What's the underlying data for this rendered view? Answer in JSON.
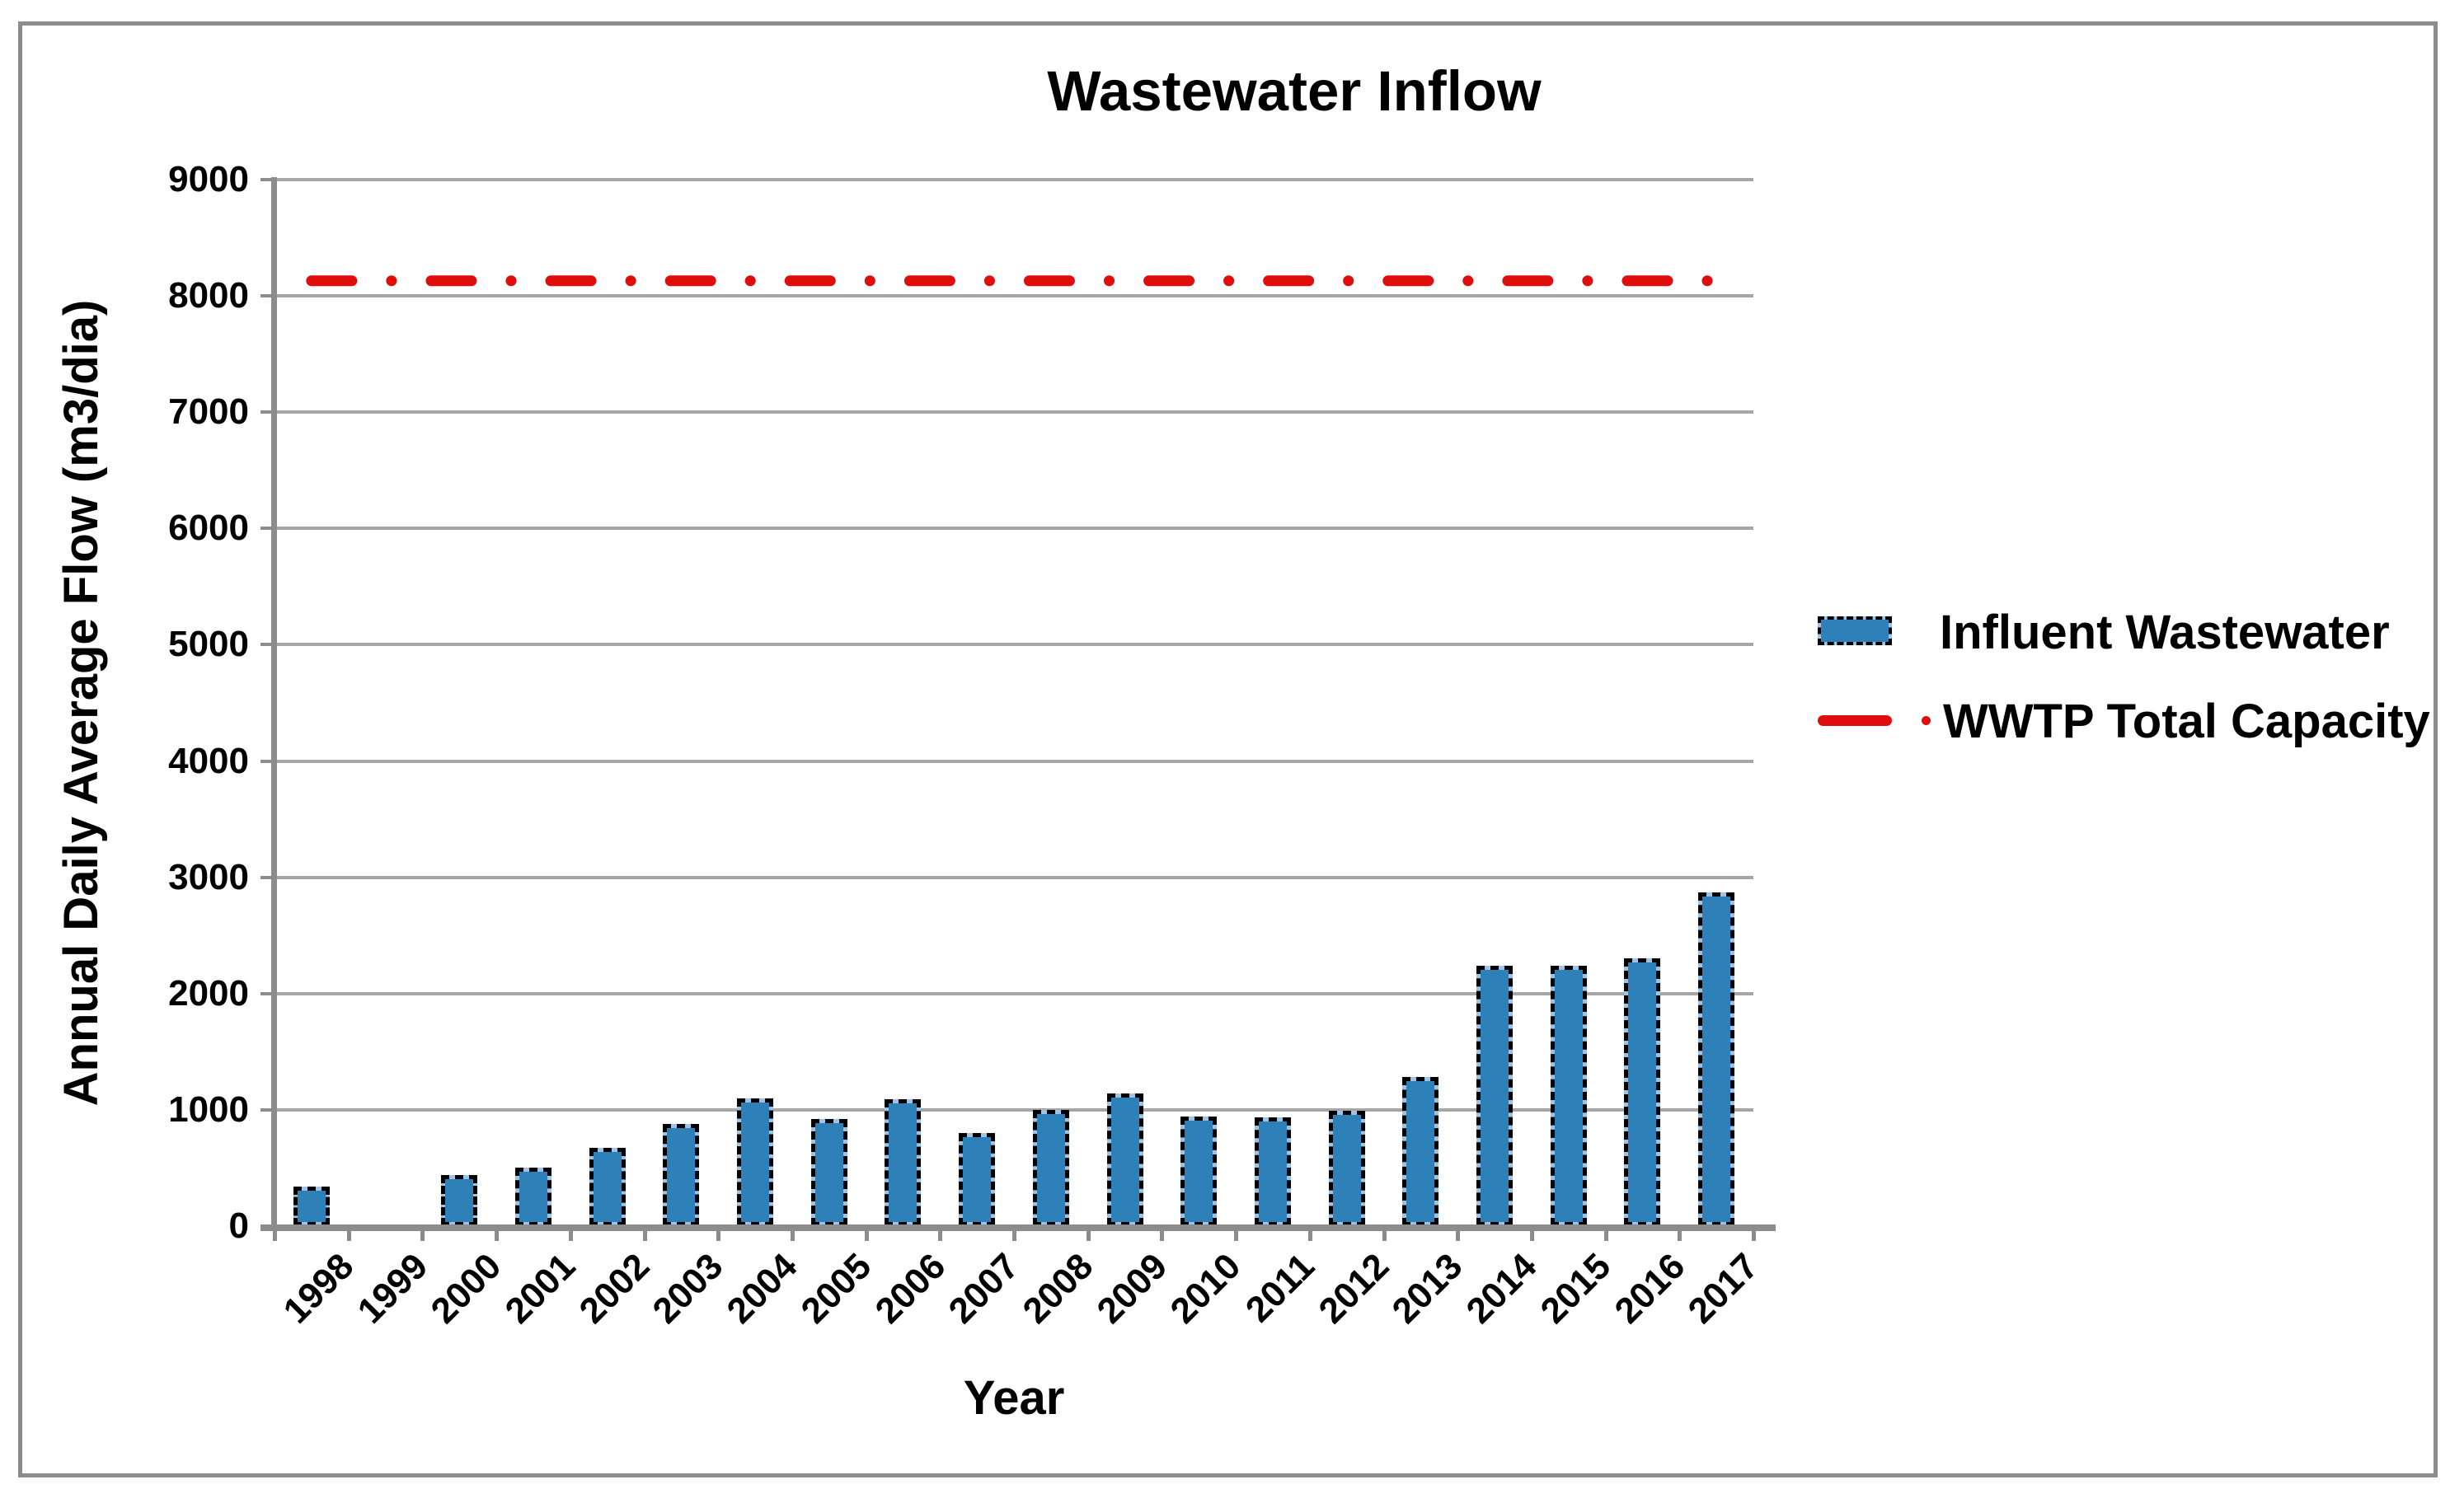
{
  "title": "Wastewater Inflow",
  "y_axis": {
    "title": "Annual Daily Average Flow (m3/dia)",
    "tick_labels": [
      "0",
      "1000",
      "2000",
      "3000",
      "4000",
      "5000",
      "6000",
      "7000",
      "8000",
      "9000"
    ]
  },
  "x_axis": {
    "title": "Year",
    "tick_labels": [
      "1998",
      "1999",
      "2000",
      "2001",
      "2002",
      "2003",
      "2004",
      "2005",
      "2006",
      "2007",
      "2008",
      "2009",
      "2010",
      "2011",
      "2012",
      "2013",
      "2014",
      "2015",
      "2016",
      "2017"
    ]
  },
  "legend": [
    {
      "label": "Influent Wastewater",
      "swatch": "blue-dashed-bar",
      "color": "#2E80B9"
    },
    {
      "label": "WWTP Total Capacity",
      "swatch": "red-dash-dot-line",
      "color": "#E00D0D"
    }
  ],
  "chart_data": {
    "type": "bar",
    "title": "Wastewater Inflow",
    "xlabel": "Year",
    "ylabel": "Annual Daily Average Flow (m3/dia)",
    "ylim": [
      0,
      9000
    ],
    "ytick_interval": 1000,
    "grid": true,
    "legend_position": "right-center",
    "categories": [
      "1998",
      "1999",
      "2000",
      "2001",
      "2002",
      "2003",
      "2004",
      "2005",
      "2006",
      "2007",
      "2008",
      "2009",
      "2010",
      "2011",
      "2012",
      "2013",
      "2014",
      "2015",
      "2016",
      "2017"
    ],
    "series": [
      {
        "name": "Influent Wastewater",
        "type": "bar",
        "color": "#2E80B9",
        "values": [
          340,
          0,
          440,
          500,
          670,
          880,
          1100,
          920,
          1090,
          800,
          1000,
          1140,
          940,
          935,
          990,
          1280,
          2240,
          2240,
          2300,
          2870
        ]
      },
      {
        "name": "WWTP Total Capacity",
        "type": "line",
        "line_style": "dash-dot",
        "color": "#E00D0D",
        "constant_value": 8130,
        "values": [
          8130,
          8130,
          8130,
          8130,
          8130,
          8130,
          8130,
          8130,
          8130,
          8130,
          8130,
          8130,
          8130,
          8130,
          8130,
          8130,
          8130,
          8130,
          8130,
          8130
        ]
      }
    ],
    "colors": {
      "bar_fill": "#2E80B9",
      "bar_edge_light": "#9DC3E6",
      "bar_border": "#000000",
      "capacity_line": "#E00D0D",
      "gridline": "#A6A6A6",
      "axis": "#8C8C8C",
      "frame": "#8C8C8C",
      "background": "#FFFFFF",
      "text": "#000000"
    }
  }
}
